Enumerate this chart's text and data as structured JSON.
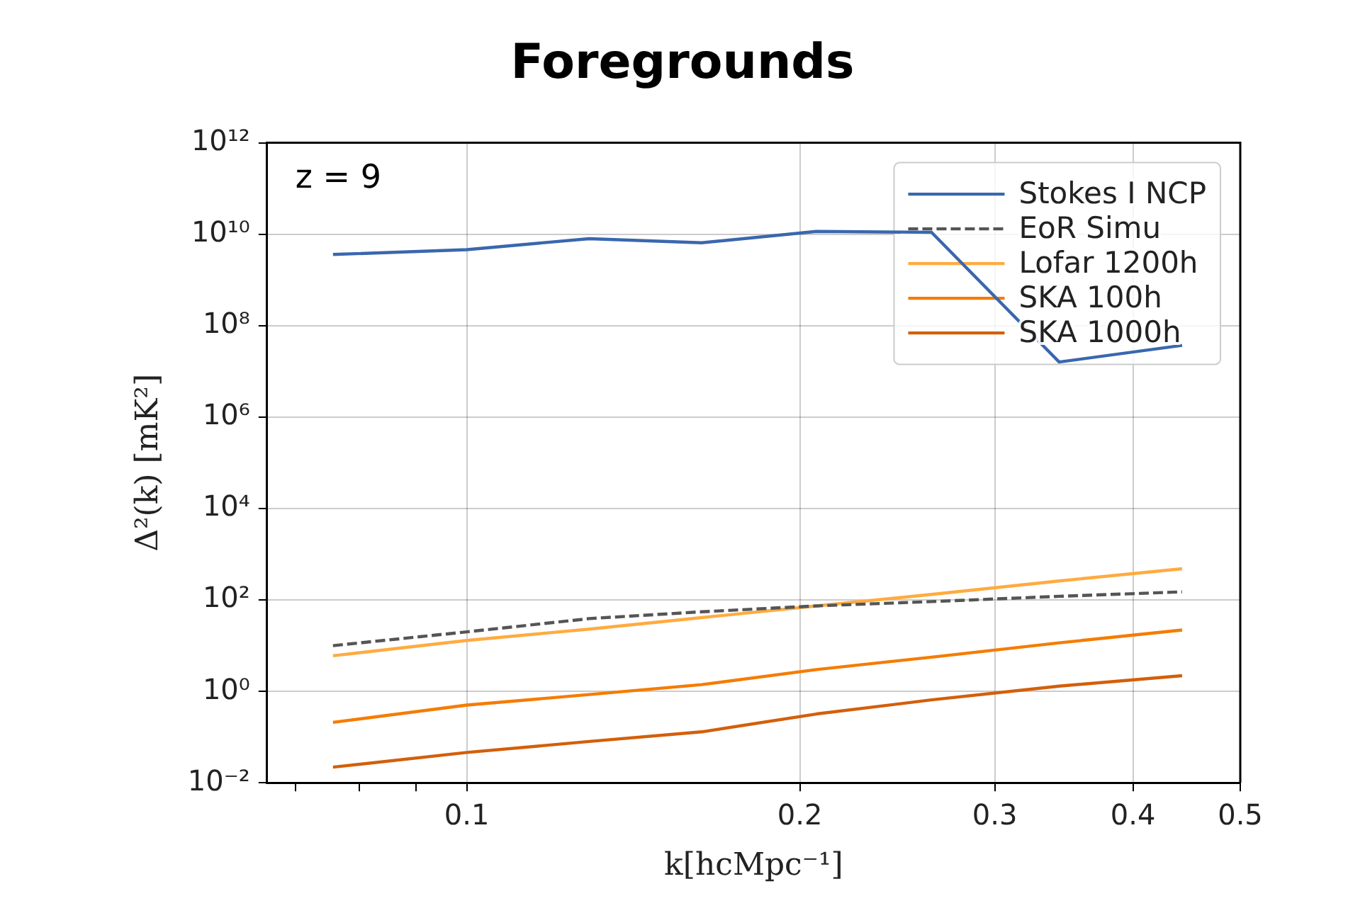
{
  "chart_data": {
    "type": "line",
    "title": "Foregrounds",
    "xlabel": "k[hcMpc⁻¹]",
    "ylabel": "Δ²(k) [mK²]",
    "annotations": [
      "z = 9"
    ],
    "x": [
      0.0757,
      0.1,
      0.129,
      0.163,
      0.207,
      0.263,
      0.343,
      0.443
    ],
    "series": [
      {
        "name": "Stokes I NCP",
        "color": "#3a67ae",
        "line_style": "solid",
        "values": [
          3600000000,
          4600000000,
          8000000000,
          6500000000,
          11500000000,
          11000000000,
          16000000,
          37000000
        ]
      },
      {
        "name": "EoR Simu",
        "color": "#555555",
        "line_style": "dashed",
        "values": [
          10,
          20,
          39,
          55,
          74,
          92,
          120,
          150
        ]
      },
      {
        "name": "Lofar 1200h",
        "color": "#ffab40",
        "line_style": "solid",
        "values": [
          6,
          13,
          23,
          41,
          74,
          132,
          260,
          480
        ]
      },
      {
        "name": "SKA 100h",
        "color": "#f57c00",
        "line_style": "solid",
        "values": [
          0.21,
          0.5,
          0.85,
          1.4,
          3,
          5.6,
          11.5,
          22
        ]
      },
      {
        "name": "SKA 1000h",
        "color": "#d35f0a",
        "line_style": "solid",
        "values": [
          0.022,
          0.046,
          0.08,
          0.13,
          0.32,
          0.65,
          1.3,
          2.2
        ]
      }
    ],
    "xlim": [
      0.066,
      0.5
    ],
    "xticks": [
      {
        "value": 0.07,
        "label": null
      },
      {
        "value": 0.08,
        "label": null
      },
      {
        "value": 0.09,
        "label": null
      },
      0.1,
      0.2,
      0.3,
      0.4,
      0.5
    ],
    "ylim": [
      0.01,
      1000000000000
    ],
    "yticks": [
      {
        "value": 0.01,
        "label": "10⁻²"
      },
      {
        "value": 1,
        "label": "10⁰"
      },
      {
        "value": 100,
        "label": "10²"
      },
      {
        "value": 10000,
        "label": "10⁴"
      },
      {
        "value": 1000000,
        "label": "10⁶"
      },
      {
        "value": 100000000,
        "label": "10⁸"
      },
      {
        "value": 10000000000,
        "label": "10¹⁰"
      },
      {
        "value": 1000000000000,
        "label": "10¹²"
      }
    ],
    "log": "xy",
    "grid": true,
    "legend": "top right"
  }
}
